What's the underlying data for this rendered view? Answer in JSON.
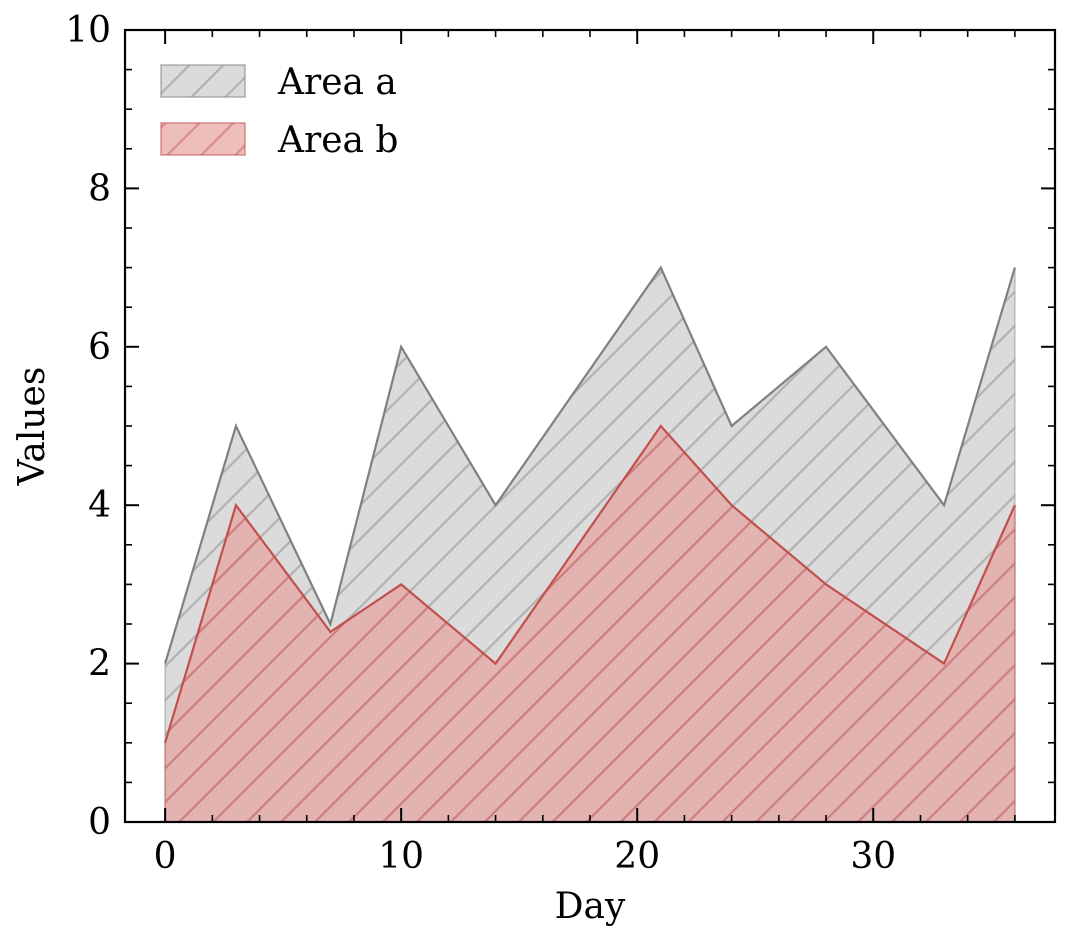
{
  "chart_data": {
    "type": "area",
    "title": "",
    "xlabel": "Day",
    "ylabel": "Values",
    "xlim": [
      -1.7,
      37.7
    ],
    "ylim": [
      0,
      10
    ],
    "xticks": [
      0,
      10,
      20,
      30
    ],
    "yticks": [
      0,
      2,
      4,
      6,
      8,
      10
    ],
    "grid": false,
    "legend_position": "top-left",
    "x": [
      0,
      3,
      7,
      10,
      14,
      21,
      24,
      28,
      33,
      36
    ],
    "series": [
      {
        "name": "Area a",
        "values": [
          2,
          5,
          2.5,
          6,
          4,
          7,
          5,
          6,
          4,
          7
        ],
        "color": "#808080",
        "fill": "#d9d9d9",
        "hatch": "diagonal"
      },
      {
        "name": "Area b",
        "values": [
          1,
          4,
          2.4,
          3,
          2,
          5,
          4,
          3,
          2,
          4
        ],
        "color": "#c0504d",
        "fill": "#e8a3a1",
        "hatch": "diagonal"
      }
    ]
  }
}
